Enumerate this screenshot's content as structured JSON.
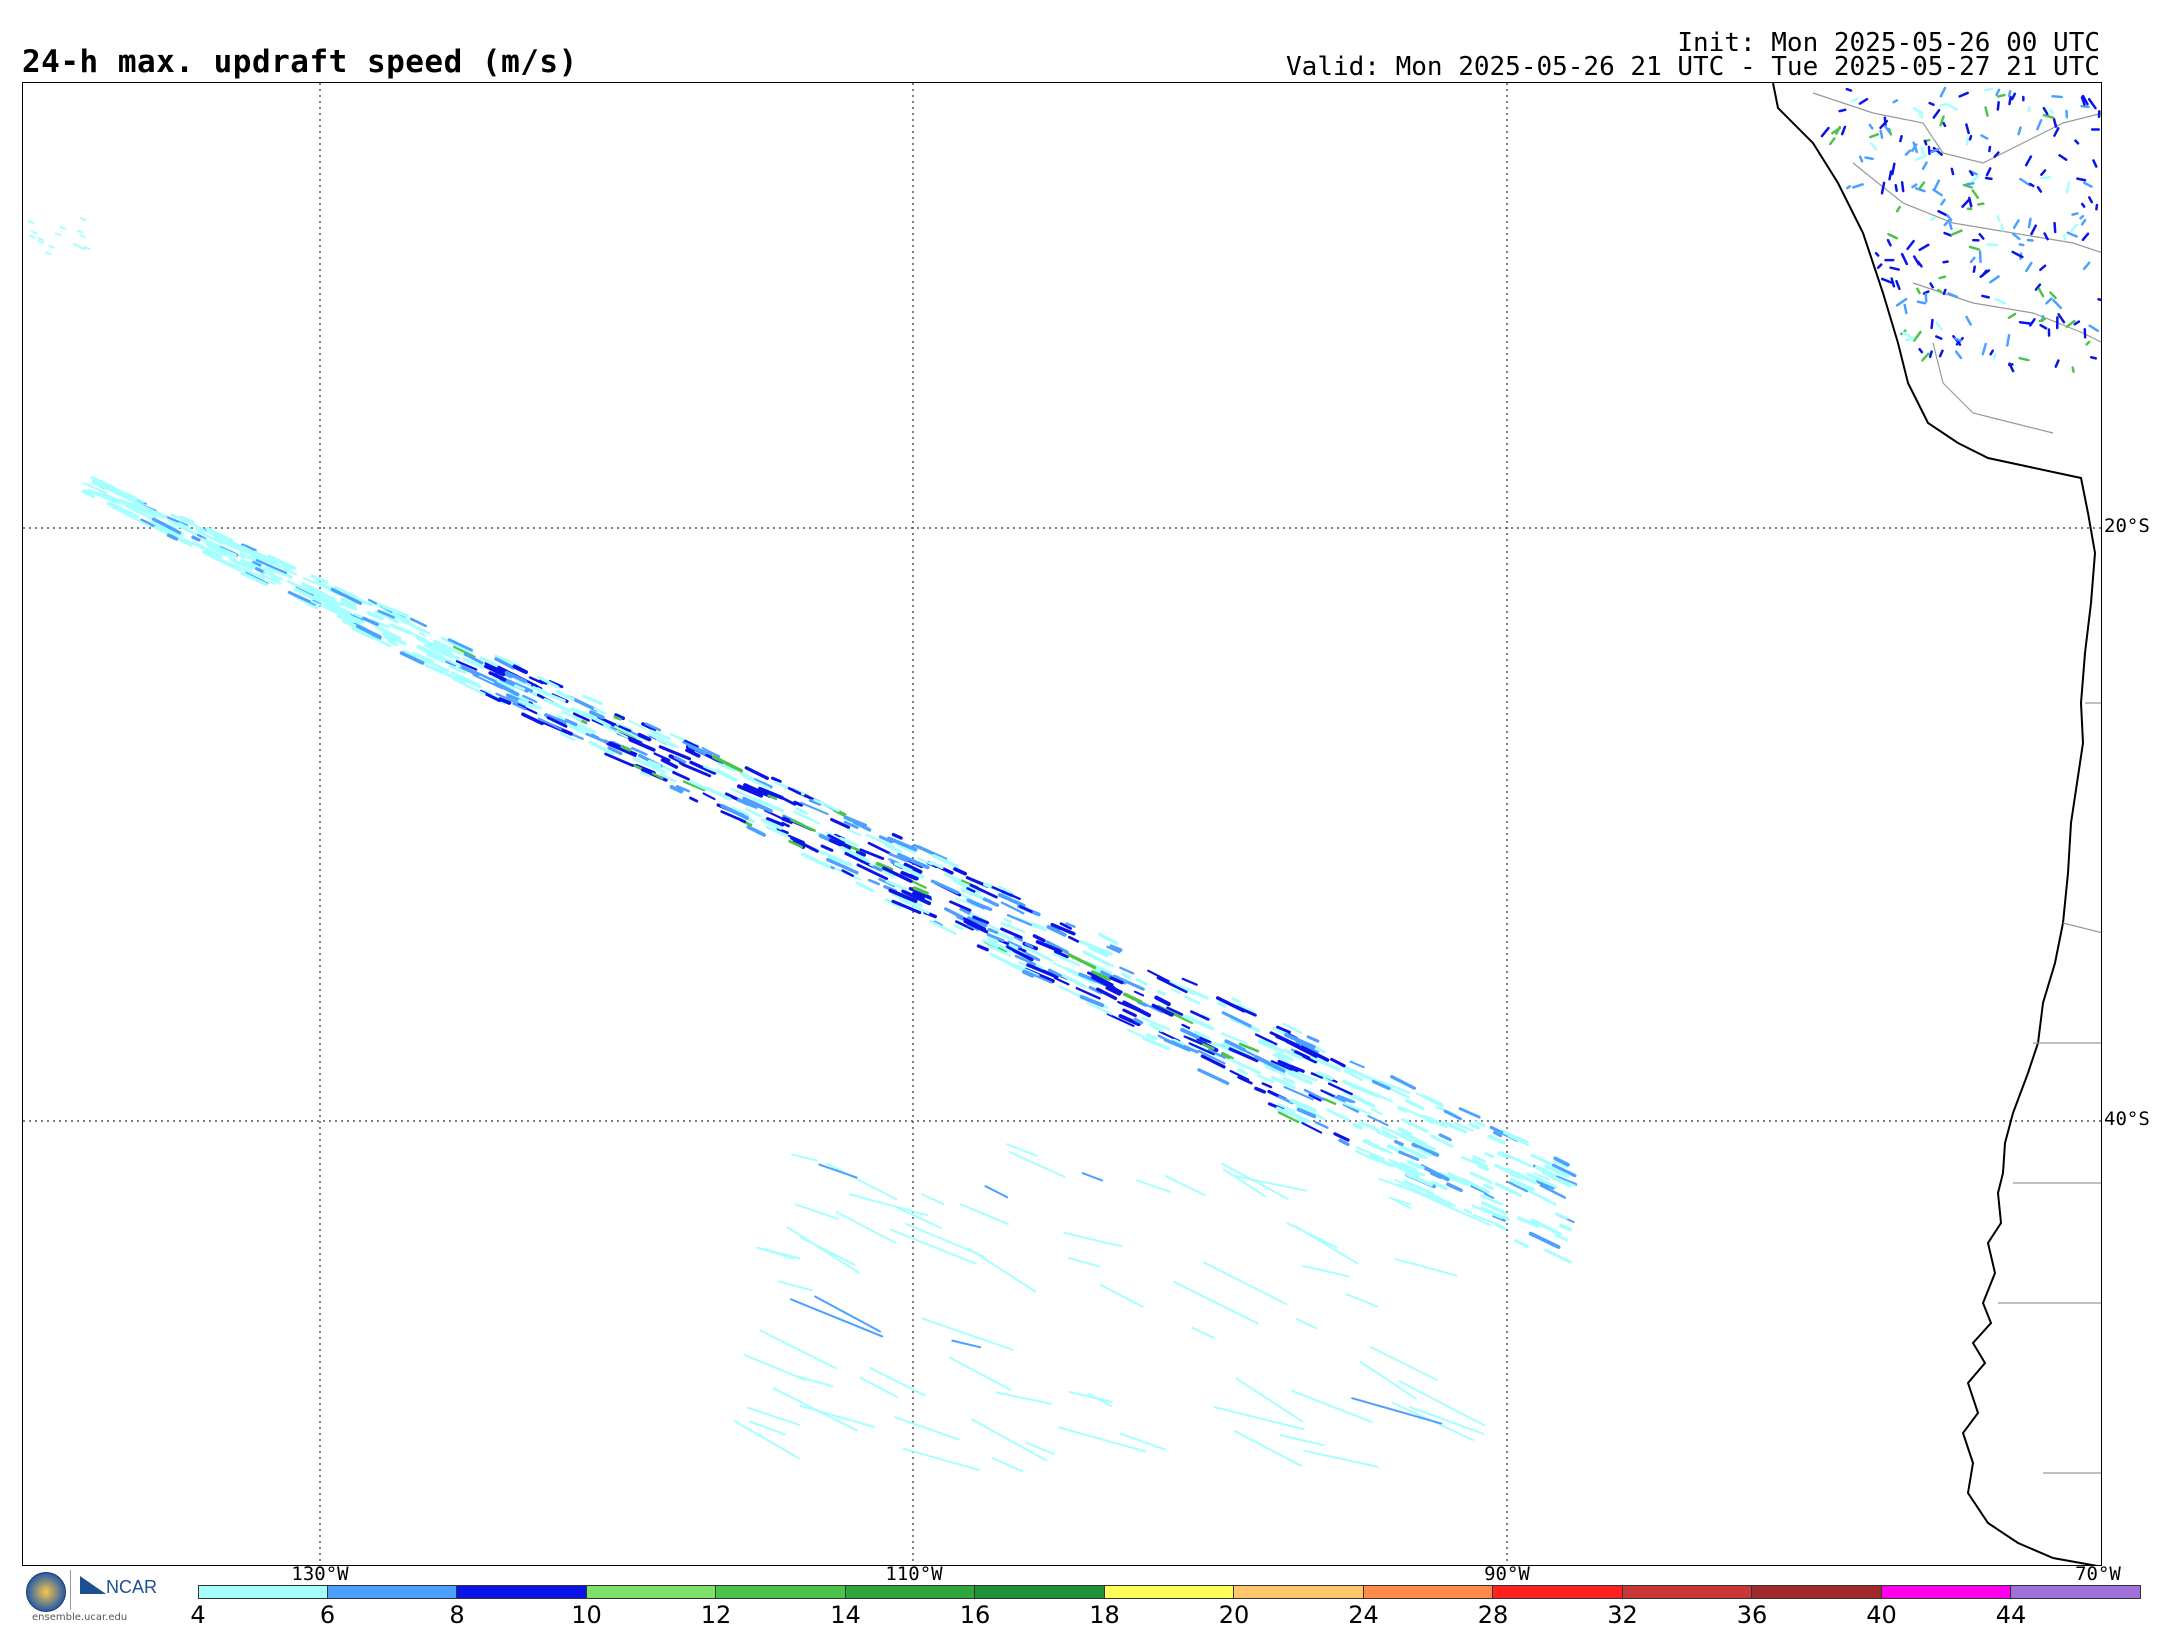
{
  "header": {
    "title": "24-h max. updraft speed (m/s)",
    "init": "Init: Mon 2025-05-26 00 UTC",
    "valid": "Valid: Mon 2025-05-26 21 UTC - Tue 2025-05-27 21 UTC"
  },
  "map": {
    "lat_labels": [
      "20°S",
      "40°S"
    ],
    "lon_labels": [
      "130°W",
      "110°W",
      "90°W",
      "70°W"
    ],
    "gridlines": "dotted"
  },
  "colorbar": {
    "ticks": [
      "4",
      "6",
      "8",
      "10",
      "12",
      "14",
      "16",
      "18",
      "20",
      "24",
      "28",
      "32",
      "36",
      "40",
      "44"
    ],
    "colors": [
      "#a6ffff",
      "#4ca0ff",
      "#0b14e6",
      "#7ee06a",
      "#4cc44c",
      "#2ea63d",
      "#1f8f38",
      "#ffff5a",
      "#ffc76b",
      "#ff8a4a",
      "#ff2020",
      "#c83838",
      "#a02a2a",
      "#ff00ee",
      "#a070d8"
    ]
  },
  "logo": {
    "nsf": "NSF",
    "ncar": "NCAR",
    "url": "ensemble.ucar.edu"
  }
}
